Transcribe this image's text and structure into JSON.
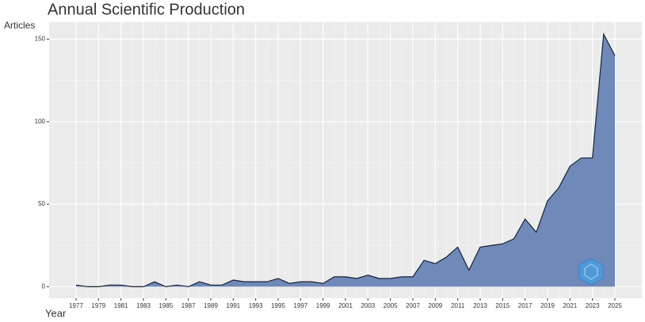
{
  "chart_data": {
    "type": "area",
    "title": "Annual Scientific Production",
    "x_label": "Year",
    "y_label": "Articles",
    "x": [
      1977,
      1978,
      1979,
      1980,
      1981,
      1982,
      1983,
      1984,
      1985,
      1986,
      1987,
      1988,
      1989,
      1990,
      1991,
      1992,
      1993,
      1994,
      1995,
      1996,
      1997,
      1998,
      1999,
      2000,
      2001,
      2002,
      2003,
      2004,
      2005,
      2006,
      2007,
      2008,
      2009,
      2010,
      2011,
      2012,
      2013,
      2014,
      2015,
      2016,
      2017,
      2018,
      2019,
      2020,
      2021,
      2022,
      2023,
      2024,
      2025
    ],
    "y": [
      1,
      0,
      0,
      1,
      1,
      0,
      0,
      3,
      0,
      1,
      0,
      3,
      1,
      1,
      4,
      3,
      3,
      3,
      5,
      2,
      3,
      3,
      2,
      6,
      6,
      5,
      7,
      5,
      5,
      6,
      6,
      16,
      14,
      18,
      24,
      10,
      24,
      25,
      26,
      29,
      41,
      33,
      52,
      60,
      73,
      78,
      78,
      153,
      140
    ],
    "color": "#6f89b8",
    "line_color": "#1a2233",
    "xlim": [
      1974.6,
      2027.4
    ],
    "ylim": [
      -7,
      160.3
    ],
    "xticks": [
      1977,
      1979,
      1981,
      1983,
      1985,
      1987,
      1989,
      1991,
      1993,
      1995,
      1997,
      1999,
      2001,
      2003,
      2005,
      2007,
      2009,
      2011,
      2013,
      2015,
      2017,
      2019,
      2021,
      2023,
      2025
    ],
    "yticks": [
      0,
      50,
      100,
      150
    ],
    "grid": true
  }
}
